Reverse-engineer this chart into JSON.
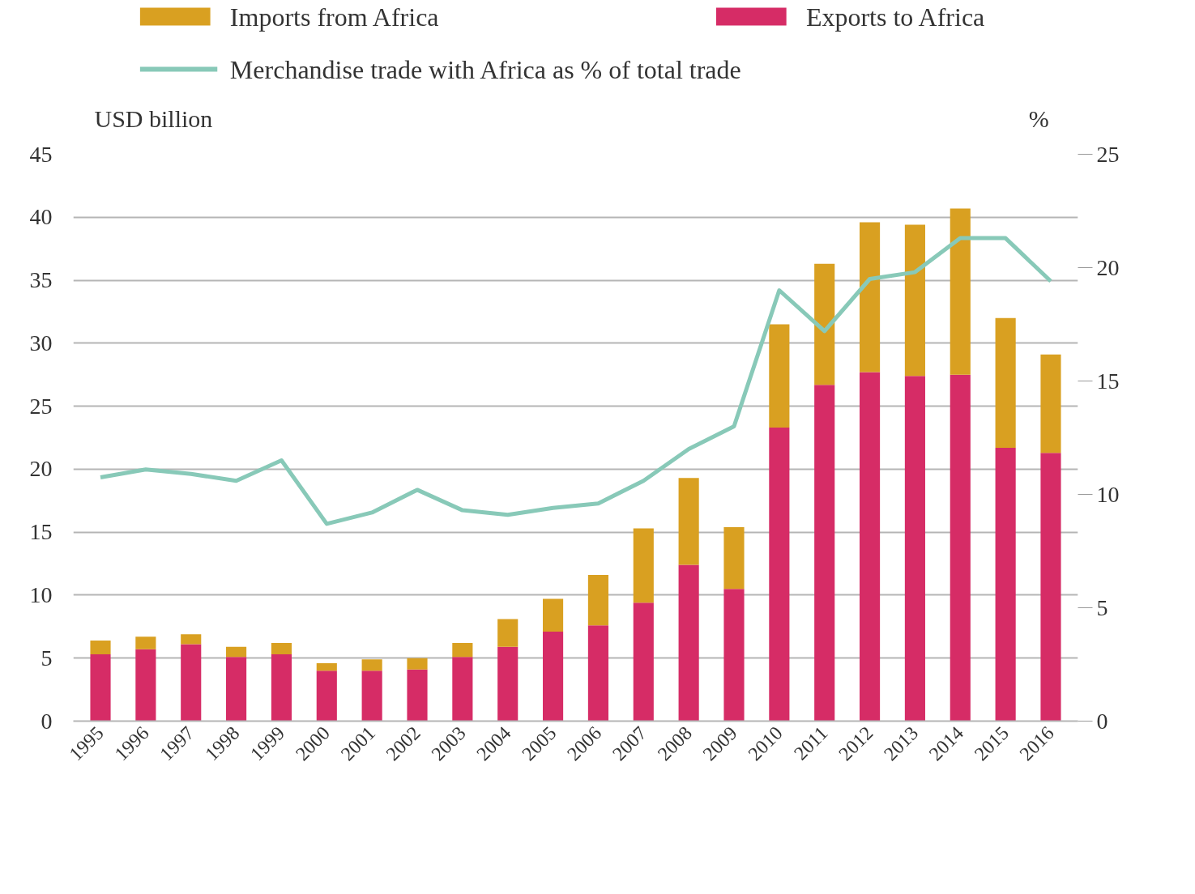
{
  "chart_data": {
    "type": "bar",
    "stacked": true,
    "ylabel": "USD billion",
    "y2label": "%",
    "categories": [
      "1995",
      "1996",
      "1997",
      "1998",
      "1999",
      "2000",
      "2001",
      "2002",
      "2003",
      "2004",
      "2005",
      "2006",
      "2007",
      "2008",
      "2009",
      "2010",
      "2011",
      "2012",
      "2013",
      "2014",
      "2015",
      "2016"
    ],
    "series": [
      {
        "name": "Exports to Africa",
        "color": "#d62c66",
        "values": [
          5.3,
          5.7,
          6.1,
          5.1,
          5.3,
          4.0,
          4.0,
          4.1,
          5.1,
          5.9,
          7.1,
          7.6,
          9.4,
          12.4,
          10.5,
          23.3,
          26.7,
          27.7,
          27.4,
          27.5,
          21.7,
          21.3
        ]
      },
      {
        "name": "Imports from Africa",
        "color": "#d9a021",
        "values": [
          1.1,
          1.0,
          0.8,
          0.8,
          0.9,
          0.6,
          0.9,
          0.9,
          1.1,
          2.2,
          2.6,
          4.0,
          5.9,
          6.9,
          4.9,
          8.2,
          9.6,
          11.9,
          12.0,
          13.2,
          10.3,
          7.8
        ]
      },
      {
        "name": "Merchandise trade with Africa as % of total trade",
        "type": "line",
        "axis": "y2",
        "color": "#88c9b8",
        "values": [
          10.75,
          11.1,
          10.9,
          10.6,
          11.5,
          8.7,
          9.2,
          10.2,
          9.3,
          9.1,
          9.4,
          9.6,
          10.6,
          12.0,
          13.0,
          19.0,
          17.2,
          19.5,
          19.8,
          21.3,
          21.3,
          19.4
        ]
      }
    ],
    "ylim": [
      0,
      45
    ],
    "yticks": [
      0,
      5,
      10,
      15,
      20,
      25,
      30,
      35,
      40,
      45
    ],
    "y2lim": [
      0,
      25
    ],
    "y2ticks": [
      0,
      5,
      10,
      15,
      20,
      25
    ],
    "grid": "y",
    "legend": "top"
  }
}
